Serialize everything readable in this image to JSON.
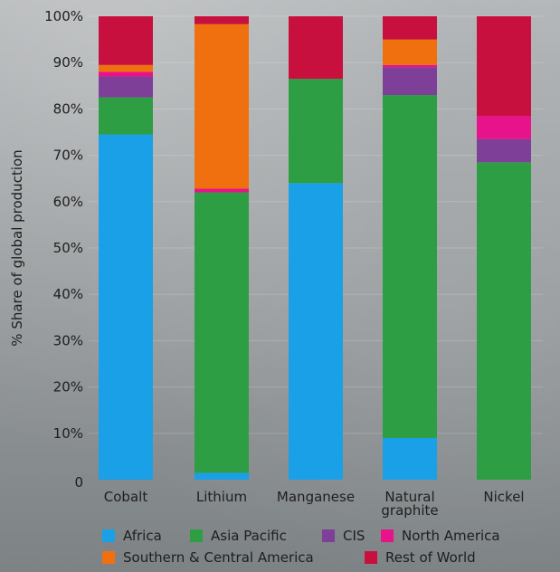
{
  "chart_data": {
    "type": "bar",
    "stacked": true,
    "ylabel": "% Share of global production",
    "ylim": [
      0,
      100
    ],
    "y_ticks": [
      {
        "value": 0,
        "label": "0"
      },
      {
        "value": 10,
        "label": "10%"
      },
      {
        "value": 20,
        "label": "20%"
      },
      {
        "value": 30,
        "label": "30%"
      },
      {
        "value": 40,
        "label": "40%"
      },
      {
        "value": 50,
        "label": "50%"
      },
      {
        "value": 60,
        "label": "60%"
      },
      {
        "value": 70,
        "label": "70%"
      },
      {
        "value": 80,
        "label": "80%"
      },
      {
        "value": 90,
        "label": "90%"
      },
      {
        "value": 100,
        "label": "100%"
      }
    ],
    "categories": [
      "Cobalt",
      "Lithium",
      "Manganese",
      "Natural graphite",
      "Nickel"
    ],
    "category_labels": [
      [
        "Cobalt"
      ],
      [
        "Lithium"
      ],
      [
        "Manganese"
      ],
      [
        "Natural",
        "graphite"
      ],
      [
        "Nickel"
      ]
    ],
    "series": [
      {
        "name": "Africa",
        "color": "#1aa0e6",
        "values": [
          74.5,
          1.5,
          64,
          9,
          0
        ]
      },
      {
        "name": "Asia Pacific",
        "color": "#2e9e44",
        "values": [
          8,
          60.5,
          22.5,
          74,
          68.5
        ]
      },
      {
        "name": "CIS",
        "color": "#7e3f98",
        "values": [
          4.5,
          0,
          0,
          6,
          5
        ]
      },
      {
        "name": "North America",
        "color": "#e6138a",
        "values": [
          1,
          0.8,
          0,
          0.5,
          5
        ]
      },
      {
        "name": "Southern & Central America",
        "color": "#f07010",
        "values": [
          1.5,
          35.5,
          0,
          5.5,
          0
        ]
      },
      {
        "name": "Rest of World",
        "color": "#c8103e",
        "values": [
          10.5,
          1.7,
          13.5,
          5,
          21.5
        ]
      }
    ],
    "legend_position": "bottom",
    "grid": true
  }
}
